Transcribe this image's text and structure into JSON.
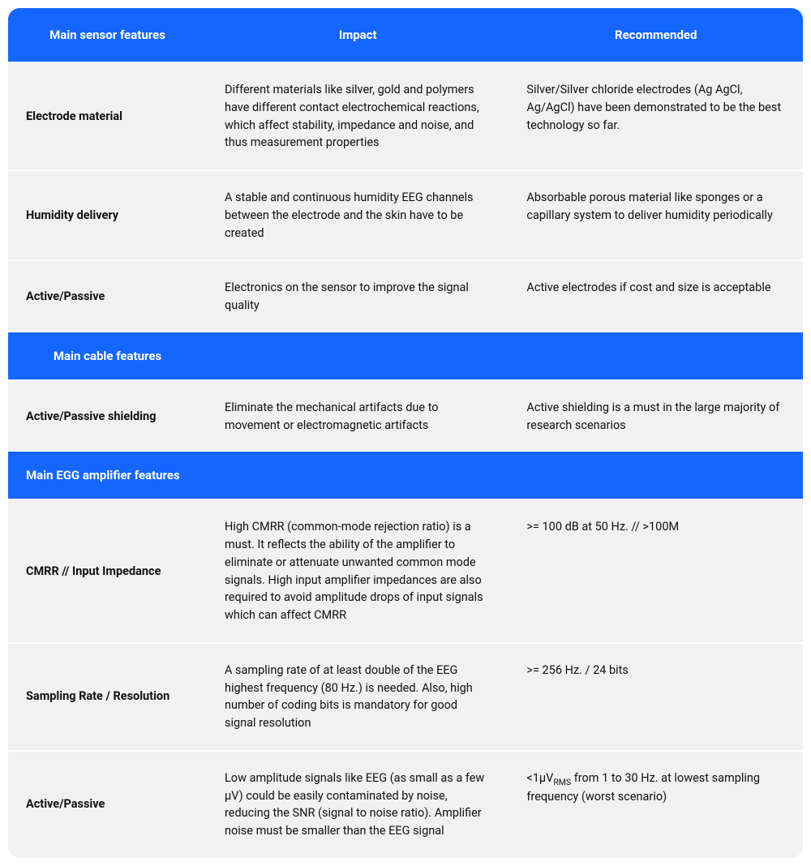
{
  "colors": {
    "header_bg": "#1466ff",
    "header_text": "#ffffff",
    "cell_bg": "#f1f1f1",
    "cell_text": "#111111",
    "row_gap": "#ffffff"
  },
  "header": {
    "col1": "Main sensor features",
    "col2": "Impact",
    "col3": "Recommended"
  },
  "sensor_rows": [
    {
      "feature": "Electrode material",
      "impact": "Different materials like silver, gold and polymers have different contact electrochemical reactions, which affect stability, impedance and noise, and thus measurement properties",
      "recommended": "Silver/Silver chloride electrodes (Ag AgCl, Ag/AgCl) have been demonstrated to be the best technology so far."
    },
    {
      "feature": "Humidity delivery",
      "impact": "A stable and continuous humidity EEG channels between the electrode and the skin have to be created",
      "recommended": "Absorbable porous material like sponges or a capillary system to deliver humidity periodically"
    },
    {
      "feature": "Active/Passive",
      "impact": "Electronics on the sensor to improve the signal quality",
      "recommended": "Active electrodes if cost and size is acceptable"
    }
  ],
  "section_cable": {
    "title": "Main cable features"
  },
  "cable_rows": [
    {
      "feature": "Active/Passive shielding",
      "impact": "Eliminate the mechanical artifacts due to movement or electromagnetic artifacts",
      "recommended": "Active shielding is a must in the large majority of research scenarios"
    }
  ],
  "section_amp": {
    "title": "Main EGG amplifier features"
  },
  "amp_rows": [
    {
      "feature": "CMRR // Input Impedance",
      "impact": "High CMRR (common-mode rejection ratio) is a must. It reflects the ability of the amplifier to eliminate or attenuate unwanted common mode signals. High input amplifier impedances are also required to avoid amplitude drops of input signals which can affect CMRR",
      "recommended": ">= 100 dB at 50 Hz. // >100M"
    },
    {
      "feature": "Sampling Rate / Resolution",
      "impact": "A sampling rate of at least double of the EEG highest frequency (80 Hz.) is needed. Also, high number of coding bits is mandatory for good signal resolution",
      "recommended": ">= 256 Hz. / 24 bits"
    },
    {
      "feature": "Active/Passive",
      "impact": "Low amplitude signals like EEG (as small as a few µV) could be easily contaminated by noise, reducing the SNR (signal to noise ratio). Amplifier noise must be smaller than the EEG signal",
      "recommended_html": "<1µV<sub>RMS</sub> from 1 to 30 Hz. at lowest sampling frequency (worst scenario)"
    }
  ]
}
